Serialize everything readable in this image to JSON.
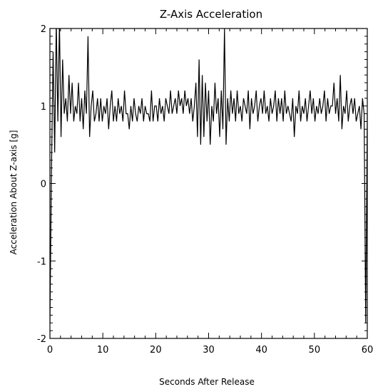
{
  "chart_data": {
    "type": "line",
    "title": "Z-Axis Acceleration",
    "xlabel": "Seconds After Release",
    "ylabel": "Acceleration About Z-axis [g]",
    "xlim": [
      0,
      60
    ],
    "ylim": [
      -2,
      2
    ],
    "x_ticks": [
      0,
      10,
      20,
      30,
      40,
      50,
      60
    ],
    "y_ticks": [
      -2,
      -1,
      0,
      1,
      2
    ],
    "x_tick_labels": [
      "0",
      "10",
      "20",
      "30",
      "40",
      "50",
      "60"
    ],
    "y_tick_labels": [
      "-2",
      "-1",
      "0",
      "1",
      "2"
    ],
    "grid": false,
    "legend": "none",
    "line_color": "#000000",
    "series": [
      {
        "x": [
          0.0,
          0.3,
          0.6,
          0.9,
          1.2,
          1.5,
          1.8,
          2.1,
          2.4,
          2.7,
          3.0,
          3.3,
          3.6,
          3.9,
          4.2,
          4.5,
          4.8,
          5.1,
          5.4,
          5.7,
          6.0,
          6.3,
          6.6,
          6.9,
          7.2,
          7.5,
          7.8,
          8.1,
          8.4,
          8.7,
          9.0,
          9.3,
          9.6,
          9.9,
          10.2,
          10.5,
          10.8,
          11.1,
          11.4,
          11.7,
          12.0,
          12.3,
          12.6,
          12.9,
          13.2,
          13.5,
          13.8,
          14.1,
          14.4,
          14.7,
          15.0,
          15.3,
          15.6,
          15.9,
          16.2,
          16.5,
          16.8,
          17.1,
          17.4,
          17.7,
          18.0,
          18.3,
          18.6,
          18.9,
          19.2,
          19.5,
          19.8,
          20.1,
          20.4,
          20.7,
          21.0,
          21.3,
          21.6,
          21.9,
          22.2,
          22.5,
          22.8,
          23.1,
          23.4,
          23.7,
          24.0,
          24.3,
          24.6,
          24.9,
          25.2,
          25.5,
          25.8,
          26.1,
          26.4,
          26.7,
          27.0,
          27.3,
          27.6,
          27.9,
          28.2,
          28.5,
          28.8,
          29.1,
          29.4,
          29.7,
          30.0,
          30.3,
          30.6,
          30.9,
          31.2,
          31.5,
          31.8,
          32.1,
          32.4,
          32.7,
          33.0,
          33.3,
          33.6,
          33.9,
          34.2,
          34.5,
          34.8,
          35.1,
          35.4,
          35.7,
          36.0,
          36.3,
          36.6,
          36.9,
          37.2,
          37.5,
          37.8,
          38.1,
          38.4,
          38.7,
          39.0,
          39.3,
          39.6,
          39.9,
          40.2,
          40.5,
          40.8,
          41.1,
          41.4,
          41.7,
          42.0,
          42.3,
          42.6,
          42.9,
          43.2,
          43.5,
          43.8,
          44.1,
          44.4,
          44.7,
          45.0,
          45.3,
          45.6,
          45.9,
          46.2,
          46.5,
          46.8,
          47.1,
          47.4,
          47.7,
          48.0,
          48.3,
          48.6,
          48.9,
          49.2,
          49.5,
          49.8,
          50.1,
          50.4,
          50.7,
          51.0,
          51.3,
          51.6,
          51.9,
          52.2,
          52.5,
          52.8,
          53.1,
          53.4,
          53.7,
          54.0,
          54.3,
          54.6,
          54.9,
          55.2,
          55.5,
          55.8,
          56.1,
          56.4,
          56.7,
          57.0,
          57.3,
          57.6,
          57.9,
          58.2,
          58.5,
          58.8,
          59.1,
          59.4,
          59.7,
          60.0
        ],
        "y": [
          -1.8,
          0.2,
          1.7,
          0.4,
          2.1,
          0.8,
          2.1,
          0.6,
          1.6,
          0.9,
          1.1,
          0.8,
          1.4,
          0.9,
          1.3,
          0.8,
          1.0,
          0.9,
          1.3,
          0.8,
          1.1,
          0.7,
          1.2,
          0.9,
          1.9,
          0.6,
          1.0,
          1.2,
          0.8,
          0.9,
          1.1,
          0.8,
          1.1,
          0.8,
          1.0,
          0.9,
          1.1,
          0.7,
          1.0,
          1.2,
          0.8,
          1.0,
          0.8,
          1.1,
          0.9,
          1.0,
          0.8,
          1.2,
          0.9,
          0.9,
          0.7,
          1.0,
          0.8,
          1.1,
          0.9,
          0.8,
          1.0,
          0.9,
          1.1,
          0.8,
          1.0,
          0.9,
          0.9,
          0.8,
          1.2,
          0.8,
          1.0,
          1.0,
          0.8,
          1.1,
          0.9,
          1.0,
          0.8,
          1.1,
          1.0,
          0.9,
          1.2,
          0.9,
          1.0,
          1.1,
          0.9,
          1.2,
          1.0,
          1.1,
          0.9,
          1.2,
          1.0,
          1.1,
          0.9,
          1.1,
          0.8,
          1.0,
          1.3,
          0.6,
          1.6,
          0.5,
          1.4,
          0.6,
          1.3,
          0.8,
          1.2,
          0.5,
          1.0,
          0.8,
          1.3,
          0.9,
          1.1,
          0.6,
          1.2,
          0.7,
          2.0,
          0.5,
          1.1,
          0.8,
          1.2,
          0.9,
          1.1,
          0.8,
          1.2,
          0.9,
          1.0,
          0.8,
          1.1,
          1.0,
          0.9,
          1.2,
          0.7,
          1.1,
          0.9,
          1.0,
          1.2,
          0.8,
          1.0,
          1.1,
          0.9,
          1.2,
          0.9,
          1.0,
          0.8,
          1.1,
          0.9,
          1.0,
          1.2,
          0.8,
          1.1,
          0.9,
          1.1,
          0.8,
          1.2,
          0.9,
          1.0,
          0.9,
          0.8,
          1.1,
          0.6,
          1.0,
          0.9,
          1.2,
          0.8,
          1.0,
          0.9,
          1.1,
          0.8,
          1.0,
          1.2,
          0.9,
          1.1,
          0.8,
          1.0,
          0.9,
          1.1,
          0.9,
          1.0,
          1.2,
          0.8,
          1.1,
          0.9,
          1.0,
          1.0,
          1.3,
          0.9,
          1.1,
          0.8,
          1.4,
          0.7,
          1.0,
          0.9,
          1.2,
          0.8,
          1.0,
          1.1,
          0.9,
          1.1,
          0.8,
          0.9,
          1.0,
          0.7,
          1.1,
          0.9,
          -1.8,
          0.9
        ]
      }
    ]
  }
}
